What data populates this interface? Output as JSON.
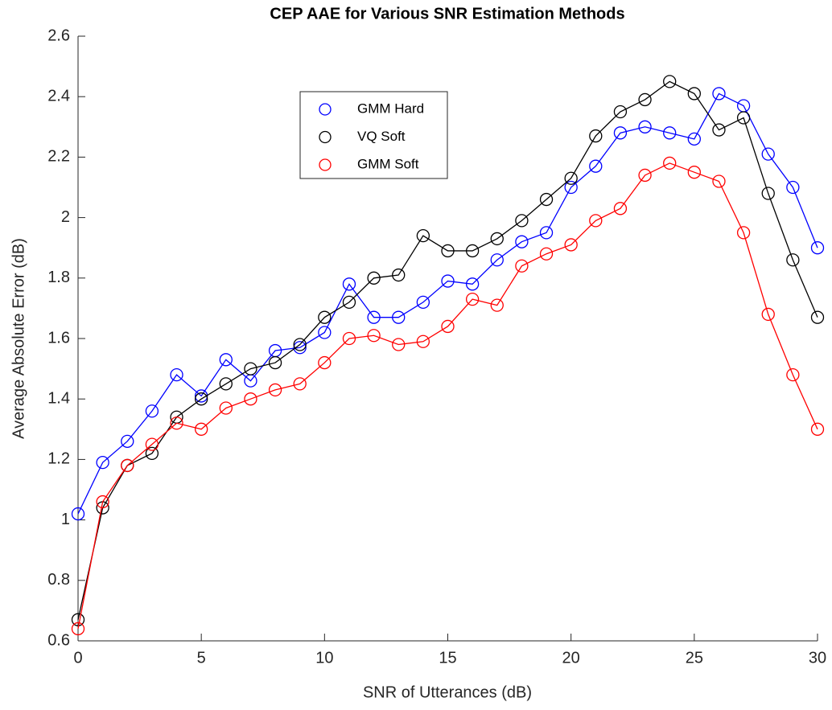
{
  "chart_data": {
    "type": "line",
    "title": "CEP AAE for Various SNR Estimation Methods",
    "x_label": "SNR of Utterances (dB)",
    "y_label": "Average Absolute Error (dB)",
    "x": [
      0,
      1,
      2,
      3,
      4,
      5,
      6,
      7,
      8,
      9,
      10,
      11,
      12,
      13,
      14,
      15,
      16,
      17,
      18,
      19,
      20,
      21,
      22,
      23,
      24,
      25,
      26,
      27,
      28,
      29,
      30
    ],
    "series": [
      {
        "name": "GMM Hard",
        "color": "#0000ff",
        "values": [
          1.02,
          1.19,
          1.26,
          1.36,
          1.48,
          1.41,
          1.53,
          1.46,
          1.56,
          1.57,
          1.62,
          1.78,
          1.67,
          1.67,
          1.72,
          1.79,
          1.78,
          1.86,
          1.92,
          1.95,
          2.1,
          2.17,
          2.28,
          2.3,
          2.28,
          2.26,
          2.41,
          2.37,
          2.21,
          2.1,
          1.9
        ]
      },
      {
        "name": "VQ Soft",
        "color": "#000000",
        "values": [
          0.67,
          1.04,
          1.18,
          1.22,
          1.34,
          1.4,
          1.45,
          1.5,
          1.52,
          1.58,
          1.67,
          1.72,
          1.8,
          1.81,
          1.94,
          1.89,
          1.89,
          1.93,
          1.99,
          2.06,
          2.13,
          2.27,
          2.35,
          2.39,
          2.45,
          2.41,
          2.29,
          2.33,
          2.08,
          1.86,
          1.67
        ]
      },
      {
        "name": "GMM Soft",
        "color": "#ff0000",
        "values": [
          0.64,
          1.06,
          1.18,
          1.25,
          1.32,
          1.3,
          1.37,
          1.4,
          1.43,
          1.45,
          1.52,
          1.6,
          1.61,
          1.58,
          1.59,
          1.64,
          1.73,
          1.71,
          1.84,
          1.88,
          1.91,
          1.99,
          2.03,
          2.14,
          2.18,
          2.15,
          2.12,
          1.95,
          1.68,
          1.48,
          1.3
        ]
      }
    ],
    "xlim": [
      0,
      30
    ],
    "ylim": [
      0.6,
      2.6
    ],
    "xticks": [
      0,
      5,
      10,
      15,
      20,
      25,
      30
    ],
    "yticks": [
      0.6,
      0.8,
      1,
      1.2,
      1.4,
      1.6,
      1.8,
      2,
      2.2,
      2.4,
      2.6
    ],
    "grid": false
  }
}
